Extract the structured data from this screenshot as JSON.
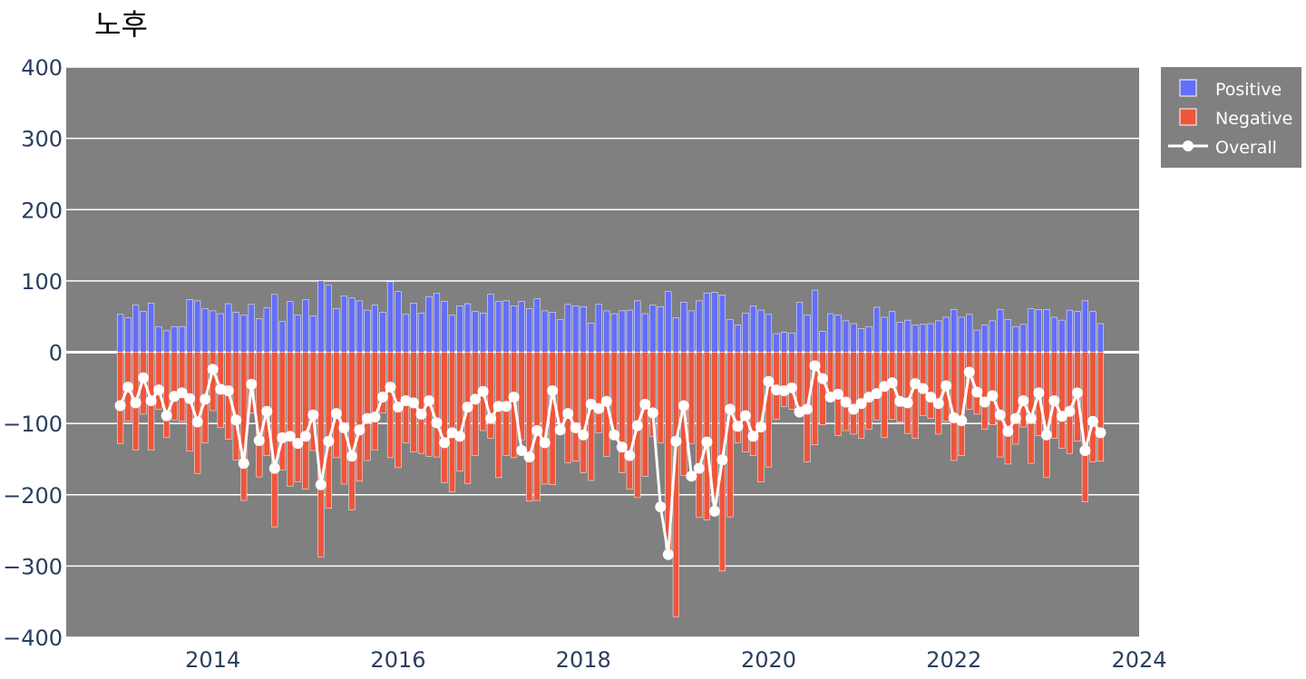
{
  "chart_data": {
    "type": "bar",
    "title": "노후",
    "xlabel": "",
    "ylabel": "",
    "ylim": [
      -400,
      400
    ],
    "xlim": [
      "2012-06",
      "2024-01"
    ],
    "y_ticks": [
      "400",
      "300",
      "200",
      "100",
      "0",
      "−100",
      "−200",
      "−300",
      "−400"
    ],
    "x_ticks": [
      "2014",
      "2016",
      "2018",
      "2020",
      "2022",
      "2024"
    ],
    "grid": true,
    "barmode": "relative",
    "legend_position": "top-right",
    "colors": {
      "plot_bg": "#808080",
      "positive": "#636efa",
      "negative": "#ef553b",
      "overall": "#ffffff",
      "legend_bg": "#808080"
    },
    "x": [
      "2013-01",
      "2013-02",
      "2013-03",
      "2013-04",
      "2013-05",
      "2013-06",
      "2013-07",
      "2013-08",
      "2013-09",
      "2013-10",
      "2013-11",
      "2013-12",
      "2014-01",
      "2014-02",
      "2014-03",
      "2014-04",
      "2014-05",
      "2014-06",
      "2014-07",
      "2014-08",
      "2014-09",
      "2014-10",
      "2014-11",
      "2014-12",
      "2015-01",
      "2015-02",
      "2015-03",
      "2015-04",
      "2015-05",
      "2015-06",
      "2015-07",
      "2015-08",
      "2015-09",
      "2015-10",
      "2015-11",
      "2015-12",
      "2016-01",
      "2016-02",
      "2016-03",
      "2016-04",
      "2016-05",
      "2016-06",
      "2016-07",
      "2016-08",
      "2016-09",
      "2016-10",
      "2016-11",
      "2016-12",
      "2017-01",
      "2017-02",
      "2017-03",
      "2017-04",
      "2017-05",
      "2017-06",
      "2017-07",
      "2017-08",
      "2017-09",
      "2017-10",
      "2017-11",
      "2017-12",
      "2018-01",
      "2018-02",
      "2018-03",
      "2018-04",
      "2018-05",
      "2018-06",
      "2018-07",
      "2018-08",
      "2018-09",
      "2018-10",
      "2018-11",
      "2018-12",
      "2019-01",
      "2019-02",
      "2019-03",
      "2019-04",
      "2019-05",
      "2019-06",
      "2019-07",
      "2019-08",
      "2019-09",
      "2019-10",
      "2019-11",
      "2019-12",
      "2020-01",
      "2020-02",
      "2020-03",
      "2020-04",
      "2020-05",
      "2020-06",
      "2020-07",
      "2020-08",
      "2020-09",
      "2020-10",
      "2020-11",
      "2020-12",
      "2021-01",
      "2021-02",
      "2021-03",
      "2021-04",
      "2021-05",
      "2021-06",
      "2021-07",
      "2021-08",
      "2021-09",
      "2021-10",
      "2021-11",
      "2021-12",
      "2022-01",
      "2022-02",
      "2022-03",
      "2022-04",
      "2022-05",
      "2022-06",
      "2022-07",
      "2022-08",
      "2022-09",
      "2022-10",
      "2022-11",
      "2022-12",
      "2023-01",
      "2023-02",
      "2023-03",
      "2023-04",
      "2023-05",
      "2023-06",
      "2023-07",
      "2023-08"
    ],
    "series": [
      {
        "name": "Positive",
        "kind": "bar",
        "values": [
          53,
          48,
          66,
          57,
          69,
          36,
          30,
          36,
          36,
          74,
          72,
          61,
          58,
          54,
          68,
          56,
          52,
          67,
          47,
          62,
          81,
          43,
          71,
          52,
          74,
          51,
          100,
          94,
          61,
          79,
          76,
          72,
          59,
          66,
          56,
          99,
          85,
          53,
          69,
          55,
          78,
          83,
          71,
          52,
          65,
          68,
          57,
          55,
          81,
          71,
          72,
          65,
          71,
          61,
          75,
          58,
          56,
          46,
          67,
          65,
          64,
          41,
          67,
          58,
          54,
          58,
          59,
          72,
          54,
          66,
          64,
          85,
          48,
          70,
          58,
          72,
          83,
          84,
          80,
          46,
          38,
          55,
          65,
          59,
          53,
          26,
          28,
          27,
          70,
          52,
          87,
          29,
          54,
          52,
          44,
          40,
          33,
          36,
          63,
          49,
          57,
          42,
          45,
          38,
          39,
          40,
          44,
          49,
          60,
          49,
          53,
          31,
          38,
          44,
          60,
          46,
          36,
          39,
          61,
          60,
          60,
          49,
          45,
          59,
          57,
          72,
          57,
          40
        ]
      },
      {
        "name": "Negative",
        "kind": "bar",
        "values": [
          -128,
          -97,
          -137,
          -87,
          -137,
          -80,
          -120,
          -95,
          -97,
          -139,
          -170,
          -127,
          -82,
          -106,
          -122,
          -151,
          -208,
          -85,
          -175,
          -145,
          -245,
          -165,
          -188,
          -182,
          -192,
          -138,
          -287,
          -219,
          -148,
          -185,
          -221,
          -181,
          -152,
          -137,
          -85,
          -148,
          -162,
          -127,
          -140,
          -142,
          -146,
          -147,
          -183,
          -196,
          -167,
          -184,
          -145,
          -110,
          -121,
          -176,
          -145,
          -148,
          -123,
          -209,
          -208,
          -185,
          -186,
          -100,
          -155,
          -153,
          -169,
          -180,
          -113,
          -146,
          -120,
          -169,
          -192,
          -204,
          -174,
          -118,
          -127,
          -282,
          -371,
          -173,
          -128,
          -232,
          -235,
          -210,
          -307,
          -231,
          -127,
          -140,
          -145,
          -182,
          -161,
          -94,
          -76,
          -80,
          -77,
          -154,
          -130,
          -102,
          -63,
          -117,
          -110,
          -115,
          -121,
          -108,
          -95,
          -120,
          -94,
          -98,
          -114,
          -121,
          -89,
          -93,
          -115,
          -97,
          -152,
          -145,
          -80,
          -87,
          -108,
          -102,
          -147,
          -157,
          -129,
          -105,
          -156,
          -117,
          -176,
          -121,
          -135,
          -142,
          -125,
          -210,
          -154,
          -153
        ]
      },
      {
        "name": "Overall",
        "kind": "line",
        "values": [
          -75,
          -49,
          -71,
          -36,
          -68,
          -53,
          -89,
          -62,
          -57,
          -65,
          -98,
          -66,
          -24,
          -52,
          -54,
          -95,
          -156,
          -45,
          -124,
          -83,
          -163,
          -120,
          -118,
          -128,
          -118,
          -88,
          -186,
          -125,
          -86,
          -106,
          -146,
          -109,
          -93,
          -91,
          -63,
          -49,
          -77,
          -68,
          -71,
          -87,
          -68,
          -99,
          -127,
          -113,
          -118,
          -77,
          -66,
          -55,
          -93,
          -76,
          -76,
          -63,
          -138,
          -147,
          -110,
          -127,
          -54,
          -109,
          -86,
          -106,
          -116,
          -73,
          -79,
          -69,
          -116,
          -133,
          -145,
          -103,
          -73,
          -85,
          -217,
          -284,
          -125,
          -75,
          -174,
          -163,
          -126,
          -223,
          -151,
          -80,
          -104,
          -89,
          -118,
          -105,
          -41,
          -53,
          -54,
          -50,
          -84,
          -80,
          -19,
          -37,
          -63,
          -59,
          -70,
          -80,
          -72,
          -63,
          -58,
          -48,
          -43,
          -69,
          -71,
          -44,
          -51,
          -63,
          -72,
          -47,
          -92,
          -96,
          -28,
          -56,
          -70,
          -61,
          -88,
          -111,
          -93,
          -68,
          -93,
          -57,
          -116,
          -68,
          -90,
          -83,
          -57,
          -138,
          -97,
          -113
        ]
      }
    ]
  }
}
